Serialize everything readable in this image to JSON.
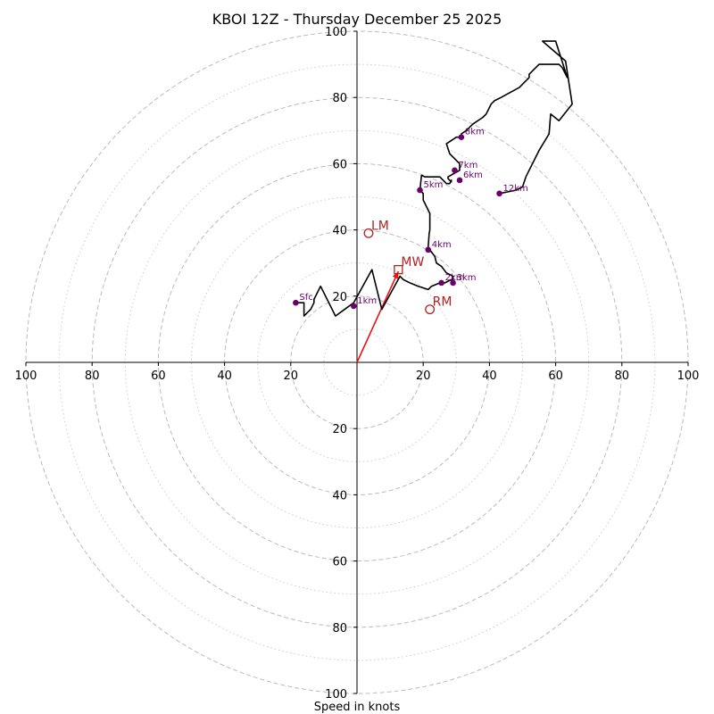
{
  "chart_data": {
    "type": "line",
    "title": "KBOI 12Z - Thursday December 25 2025",
    "xlabel": "Speed in knots",
    "ylabel": "",
    "xlim": [
      -100,
      100
    ],
    "ylim": [
      -100,
      100
    ],
    "ring_spacing": 10,
    "labeled_rings": [
      20,
      40,
      60,
      80,
      100
    ],
    "x_tick_labels": [
      "100",
      "80",
      "60",
      "40",
      "20",
      "20",
      "40",
      "60",
      "80",
      "100"
    ],
    "y_tick_labels": [
      "100",
      "80",
      "60",
      "40",
      "20",
      "20",
      "40",
      "60",
      "80",
      "100"
    ],
    "x_tick_values": [
      -100,
      -80,
      -60,
      -40,
      -20,
      20,
      40,
      60,
      80,
      100
    ],
    "y_tick_values": [
      100,
      80,
      60,
      40,
      20,
      -20,
      -40,
      -60,
      -80,
      -100
    ],
    "colors": {
      "trace": "#000000",
      "height_marker": "#6a006a",
      "storm_motion": "#b22222",
      "shear_vector": "#ee1111",
      "ring_major": "#bbbbbb",
      "ring_minor": "#cccccc"
    },
    "series": [
      {
        "name": "",
        "x": [
          -18.5,
          -16.0,
          -16.0,
          -14.0,
          -13.0,
          -13.0,
          -11.0,
          -6.5,
          -1.0,
          4.5,
          7.5,
          13.0,
          14.0,
          16.0,
          18.5,
          21.5,
          22.5,
          25.0,
          26.5,
          28.5,
          29.0,
          29.0,
          27.0,
          25.5,
          25.5,
          24.0,
          23.5,
          22.0,
          21.5,
          21.5,
          21.8,
          22.0,
          22.0,
          21.0,
          20.5,
          20.0,
          20.0,
          19.0,
          19.5,
          20.5,
          25.0,
          27.0,
          28.0,
          28.5,
          28.5,
          27.5,
          27.5,
          31.0,
          31.0,
          28.0,
          27.0,
          30.0,
          31.5,
          31.5,
          33.0,
          35.0,
          38.0,
          39.0,
          40.5,
          41.5,
          43.5,
          49.0,
          52.0,
          52.0,
          55.0,
          60.0,
          61.0,
          62.0,
          63.0,
          63.5,
          60.0,
          56.0,
          63.0,
          65.0,
          61.0,
          58.5,
          58.0,
          55.0,
          51.0,
          50.0,
          48.0,
          43.0
        ],
        "y": [
          18,
          18,
          14,
          16,
          18,
          19,
          23,
          14,
          18,
          28,
          16,
          26,
          25,
          24,
          23,
          22,
          23,
          24,
          24,
          25,
          25,
          26,
          27,
          29,
          29,
          30,
          32,
          34,
          34,
          35,
          39,
          40,
          45,
          47,
          48,
          49,
          51,
          52,
          56.5,
          56,
          56,
          54,
          54,
          55,
          54.5,
          55.5,
          56,
          58,
          60,
          63,
          66,
          68,
          68,
          69,
          70,
          72,
          74,
          75,
          78,
          79,
          80,
          83,
          86,
          87,
          90,
          90,
          90,
          89,
          87,
          86,
          97,
          97,
          91,
          78,
          73,
          75,
          69,
          64,
          56,
          53,
          52,
          51
        ]
      }
    ],
    "height_markers": [
      {
        "label": "Sfc",
        "x": -18.5,
        "y": 18
      },
      {
        "label": "1km",
        "x": -1.0,
        "y": 17
      },
      {
        "label": "2km",
        "x": 25.5,
        "y": 24
      },
      {
        "label": "3km",
        "x": 29.0,
        "y": 24
      },
      {
        "label": "4km",
        "x": 21.5,
        "y": 34
      },
      {
        "label": "5km",
        "x": 19.0,
        "y": 52
      },
      {
        "label": "6km",
        "x": 31.0,
        "y": 55
      },
      {
        "label": "7km",
        "x": 29.5,
        "y": 58
      },
      {
        "label": "8km",
        "x": 31.5,
        "y": 68
      },
      {
        "label": "12km",
        "x": 43.0,
        "y": 51
      }
    ],
    "storm_motions": [
      {
        "label": "LM",
        "x": 3.5,
        "y": 39,
        "marker": "circle"
      },
      {
        "label": "MW",
        "x": 12.5,
        "y": 28,
        "marker": "square"
      },
      {
        "label": "RM",
        "x": 22.0,
        "y": 16,
        "marker": "circle"
      }
    ],
    "shear_vector": {
      "x0": 0,
      "y0": 0,
      "x1": 12.5,
      "y1": 27.5
    },
    "grid": true
  }
}
